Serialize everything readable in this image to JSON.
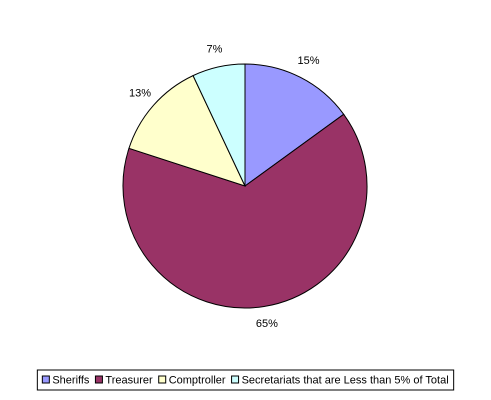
{
  "chart_data": {
    "type": "pie",
    "categories": [
      "Sheriffs",
      "Treasurer",
      "Comptroller",
      "Secretariats that are Less than 5% of Total"
    ],
    "values": [
      15,
      65,
      13,
      7
    ],
    "value_labels": [
      "15%",
      "65%",
      "13%",
      "7%"
    ],
    "colors": [
      "#9999ff",
      "#993366",
      "#ffffcc",
      "#ccffff"
    ],
    "legend": "bottom"
  }
}
